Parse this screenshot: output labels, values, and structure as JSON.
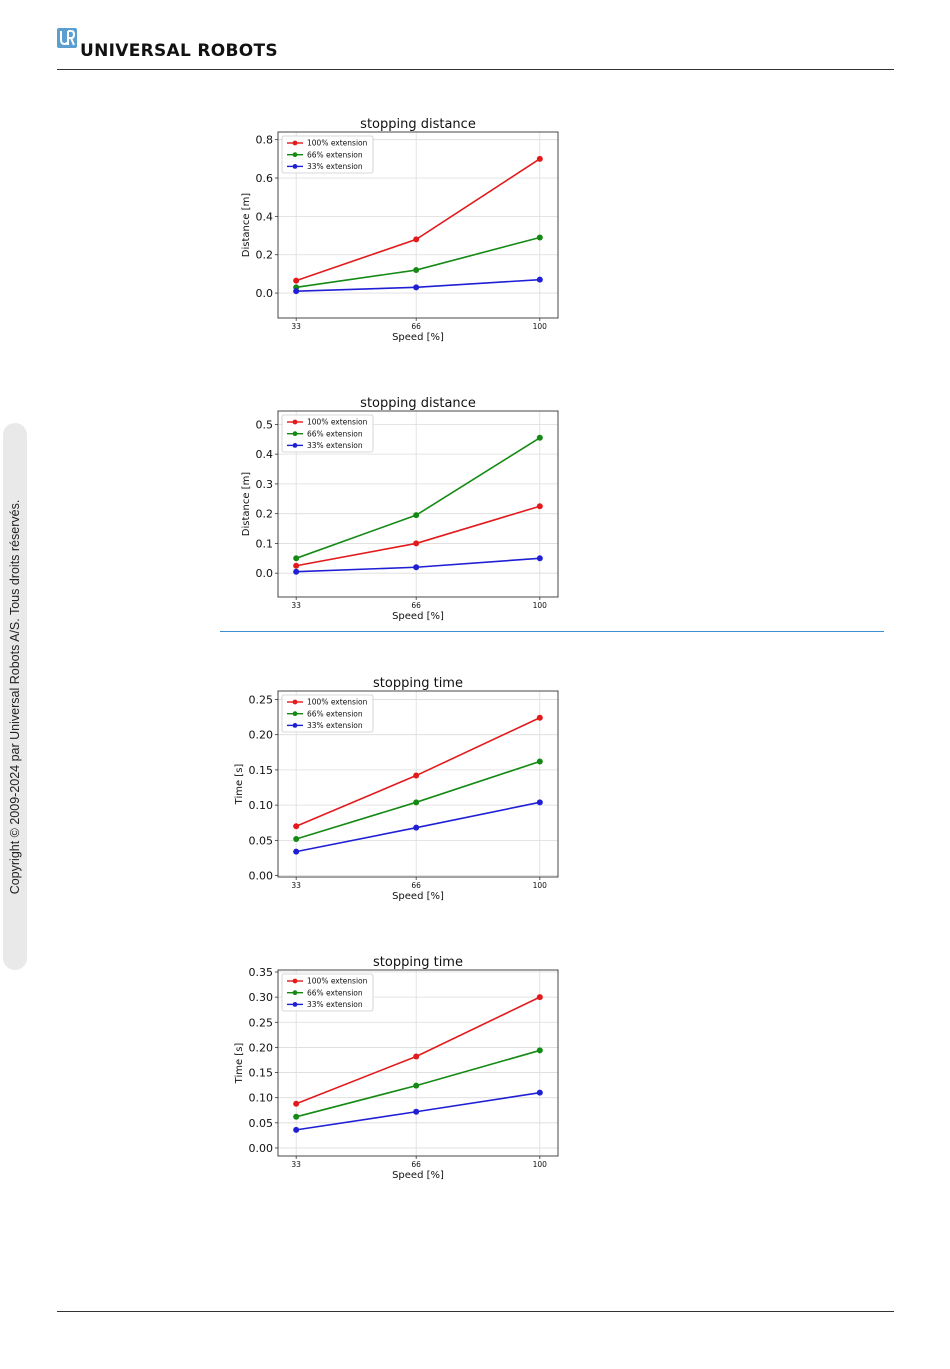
{
  "header": {
    "brand": "UNIVERSAL ROBOTS",
    "logo_icon": "ur-logo-icon"
  },
  "sidebar": {
    "copyright": "Copyright © 2009-2024 par Universal Robots A/S. Tous droits réservés."
  },
  "chart_data": [
    {
      "type": "line",
      "title": "stopping distance",
      "xlabel": "Speed [%]",
      "ylabel": "Distance [m]",
      "categories": [
        "33",
        "66",
        "100"
      ],
      "x": [
        33,
        66,
        100
      ],
      "ylim": [
        -0.13,
        0.84
      ],
      "yticks": [
        "0.0",
        "0.2",
        "0.4",
        "0.6",
        "0.8"
      ],
      "ytick_values": [
        0,
        0.2,
        0.4,
        0.6,
        0.8
      ],
      "grid": true,
      "legend": "top-left",
      "series": [
        {
          "name": "100% extension",
          "color": "#e31a1c",
          "values": [
            0.065,
            0.28,
            0.7
          ]
        },
        {
          "name": "66% extension",
          "color": "#148a14",
          "values": [
            0.03,
            0.12,
            0.29
          ]
        },
        {
          "name": "33% extension",
          "color": "#1f1fd6",
          "values": [
            0.01,
            0.03,
            0.07
          ]
        }
      ]
    },
    {
      "type": "line",
      "title": "stopping distance",
      "xlabel": "Speed [%]",
      "ylabel": "Distance [m]",
      "categories": [
        "33",
        "66",
        "100"
      ],
      "x": [
        33,
        66,
        100
      ],
      "ylim": [
        -0.08,
        0.545
      ],
      "yticks": [
        "0.0",
        "0.1",
        "0.2",
        "0.3",
        "0.4",
        "0.5"
      ],
      "ytick_values": [
        0,
        0.1,
        0.2,
        0.3,
        0.4,
        0.5
      ],
      "grid": true,
      "legend": "top-left",
      "series": [
        {
          "name": "100% extension",
          "color": "#e31a1c",
          "values": [
            0.025,
            0.1,
            0.225
          ]
        },
        {
          "name": "66% extension",
          "color": "#148a14",
          "values": [
            0.05,
            0.195,
            0.455
          ]
        },
        {
          "name": "33% extension",
          "color": "#1f1fd6",
          "values": [
            0.005,
            0.02,
            0.05
          ]
        }
      ]
    },
    {
      "type": "line",
      "title": "stopping time",
      "xlabel": "Speed [%]",
      "ylabel": "Time [s]",
      "categories": [
        "33",
        "66",
        "100"
      ],
      "x": [
        33,
        66,
        100
      ],
      "ylim": [
        -0.002,
        0.262
      ],
      "yticks": [
        "0.00",
        "0.05",
        "0.10",
        "0.15",
        "0.20",
        "0.25"
      ],
      "ytick_values": [
        0,
        0.05,
        0.1,
        0.15,
        0.2,
        0.25
      ],
      "grid": true,
      "legend": "top-left",
      "series": [
        {
          "name": "100% extension",
          "color": "#e31a1c",
          "values": [
            0.07,
            0.142,
            0.224
          ]
        },
        {
          "name": "66% extension",
          "color": "#148a14",
          "values": [
            0.052,
            0.104,
            0.162
          ]
        },
        {
          "name": "33% extension",
          "color": "#1f1fd6",
          "values": [
            0.034,
            0.068,
            0.104
          ]
        }
      ]
    },
    {
      "type": "line",
      "title": "stopping time",
      "xlabel": "Speed [%]",
      "ylabel": "Time [s]",
      "categories": [
        "33",
        "66",
        "100"
      ],
      "x": [
        33,
        66,
        100
      ],
      "ylim": [
        -0.016,
        0.354
      ],
      "yticks": [
        "0.00",
        "0.05",
        "0.10",
        "0.15",
        "0.20",
        "0.25",
        "0.30",
        "0.35"
      ],
      "ytick_values": [
        0,
        0.05,
        0.1,
        0.15,
        0.2,
        0.25,
        0.3,
        0.35
      ],
      "grid": true,
      "legend": "top-left",
      "series": [
        {
          "name": "100% extension",
          "color": "#e31a1c",
          "values": [
            0.088,
            0.182,
            0.3
          ]
        },
        {
          "name": "66% extension",
          "color": "#148a14",
          "values": [
            0.062,
            0.124,
            0.194
          ]
        },
        {
          "name": "33% extension",
          "color": "#1f1fd6",
          "values": [
            0.036,
            0.072,
            0.11
          ]
        }
      ]
    }
  ]
}
